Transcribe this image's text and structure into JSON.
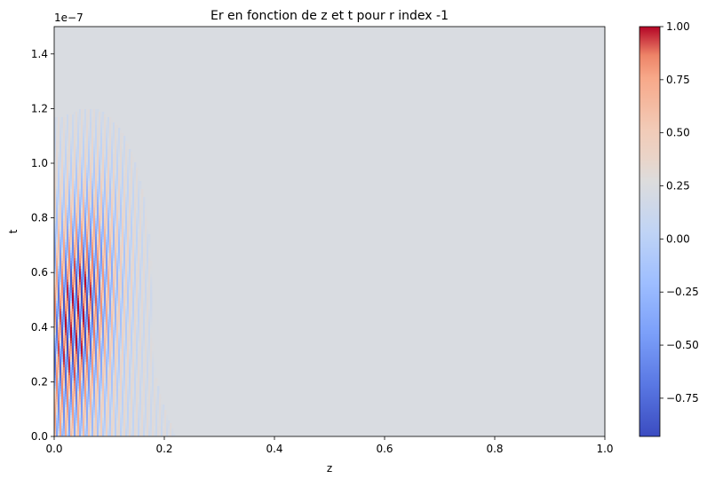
{
  "chart_data": {
    "type": "heatmap",
    "title": "Er en fonction de z et t pour r index -1",
    "xlabel": "z",
    "ylabel": "t",
    "xlim": [
      0.0,
      1.0
    ],
    "ylim": [
      0.0,
      1.5e-07
    ],
    "y_offset_label": "1e−7",
    "x_ticks": [
      0.0,
      0.2,
      0.4,
      0.6,
      0.8,
      1.0
    ],
    "x_tick_labels": [
      "0.0",
      "0.2",
      "0.4",
      "0.6",
      "0.8",
      "1.0"
    ],
    "y_ticks": [
      0.0,
      0.2,
      0.4,
      0.6,
      0.8,
      1.0,
      1.2,
      1.4
    ],
    "y_tick_labels": [
      "0.0",
      "0.2",
      "0.4",
      "0.6",
      "0.8",
      "1.0",
      "1.2",
      "1.4"
    ],
    "colormap": "coolwarm",
    "clim": [
      -0.93,
      1.0
    ],
    "colorbar_ticks": [
      -0.75,
      -0.5,
      -0.25,
      0.0,
      0.25,
      0.5,
      0.75,
      1.0
    ],
    "colorbar_tick_labels": [
      "−0.75",
      "−0.50",
      "−0.25",
      "0.00",
      "0.25",
      "0.50",
      "0.75",
      "1.00"
    ],
    "background_value": 0.0,
    "feature": {
      "description_values": "oscillating wave packet near z=0, strongest around z 0.02-0.10, t 0.1e-7-0.7e-7",
      "peak_value": 1.0,
      "min_value": -0.93
    }
  }
}
